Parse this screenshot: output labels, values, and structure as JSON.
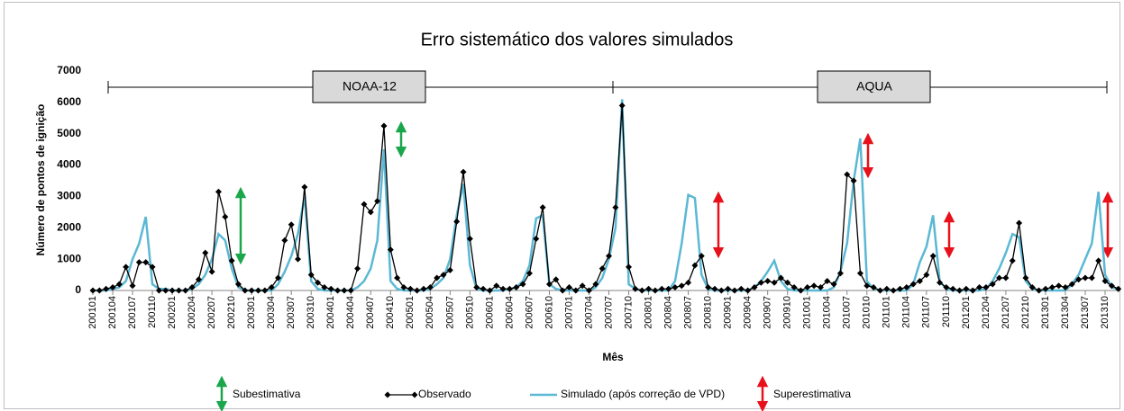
{
  "chart_data": {
    "type": "line",
    "title": "Erro sistemático dos valores simulados",
    "xlabel": "Mês",
    "ylabel": "Número de pontos de ignição",
    "annotations": [
      "NOAA-12",
      "AQUA",
      "Subestimativa",
      "Superestimativa"
    ],
    "categories": [
      "200101",
      null,
      null,
      "200104",
      null,
      null,
      "200107",
      null,
      null,
      "200110",
      null,
      null,
      "200201",
      null,
      null,
      "200204",
      null,
      null,
      "200207",
      null,
      null,
      "200210",
      null,
      null,
      "200301",
      null,
      null,
      "200304",
      null,
      null,
      "200307",
      null,
      null,
      "200310",
      null,
      null,
      "200401",
      null,
      null,
      "200404",
      null,
      null,
      "200407",
      null,
      null,
      "200410",
      null,
      null,
      "200501",
      null,
      null,
      "200504",
      null,
      null,
      "200507",
      null,
      null,
      "200510",
      null,
      null,
      "200601",
      null,
      null,
      "200604",
      null,
      null,
      "200607",
      null,
      null,
      "200610",
      null,
      null,
      "200701",
      null,
      null,
      "200704",
      null,
      null,
      "200707",
      null,
      null,
      "200710",
      null,
      null,
      "200801",
      null,
      null,
      "200804",
      null,
      null,
      "200807",
      null,
      null,
      "200810",
      null,
      null,
      "200901",
      null,
      null,
      "200904",
      null,
      null,
      "200907",
      null,
      null,
      "200910",
      null,
      null,
      "201001",
      null,
      null,
      "201004",
      null,
      null,
      "201007",
      null,
      null,
      "201010",
      null,
      null,
      "201101",
      null,
      null,
      "201104",
      null,
      null,
      "201107",
      null,
      null,
      "201110",
      null,
      null,
      "201201",
      null,
      null,
      "201204",
      null,
      null,
      "201207",
      null,
      null,
      "201210",
      null,
      null,
      "201301",
      null,
      null,
      "201304",
      null,
      null,
      "201307",
      null,
      null,
      "201310",
      null,
      null
    ],
    "series": [
      {
        "name": "Observado",
        "color": "#000000",
        "marker": "diamond",
        "values": [
          0,
          0,
          50,
          100,
          200,
          750,
          150,
          900,
          900,
          750,
          0,
          0,
          0,
          0,
          0,
          100,
          350,
          1200,
          600,
          3150,
          2350,
          950,
          200,
          0,
          0,
          0,
          0,
          100,
          400,
          1600,
          2100,
          1000,
          3300,
          500,
          250,
          100,
          50,
          0,
          0,
          0,
          700,
          2750,
          2500,
          2850,
          5250,
          1300,
          400,
          100,
          50,
          0,
          50,
          100,
          400,
          500,
          650,
          2200,
          3780,
          1650,
          100,
          50,
          0,
          150,
          50,
          50,
          100,
          200,
          550,
          1650,
          2650,
          200,
          350,
          0,
          100,
          0,
          150,
          0,
          200,
          700,
          1100,
          2650,
          5900,
          750,
          50,
          0,
          50,
          0,
          50,
          50,
          100,
          150,
          250,
          800,
          1100,
          100,
          50,
          0,
          50,
          0,
          50,
          0,
          100,
          250,
          300,
          250,
          400,
          250,
          100,
          0,
          100,
          150,
          100,
          300,
          200,
          550,
          3700,
          3500,
          550,
          150,
          100,
          0,
          50,
          0,
          50,
          100,
          200,
          300,
          500,
          1100,
          250,
          100,
          50,
          0,
          50,
          0,
          100,
          100,
          200,
          400,
          400,
          950,
          2150,
          400,
          100,
          0,
          50,
          100,
          150,
          100,
          200,
          350,
          400,
          400,
          950,
          300,
          150,
          50
        ]
      },
      {
        "name": "Simulado (após correção de VPD)",
        "color": "#5bb8d4",
        "values": [
          0,
          0,
          0,
          50,
          100,
          300,
          1000,
          1500,
          2350,
          200,
          50,
          50,
          0,
          0,
          0,
          50,
          200,
          500,
          1000,
          1800,
          1600,
          700,
          100,
          0,
          0,
          0,
          0,
          0,
          200,
          600,
          1100,
          1800,
          3000,
          300,
          50,
          0,
          0,
          0,
          0,
          0,
          100,
          300,
          700,
          1600,
          4500,
          300,
          50,
          0,
          0,
          0,
          0,
          50,
          200,
          400,
          1000,
          2400,
          3400,
          800,
          50,
          0,
          0,
          0,
          0,
          50,
          100,
          300,
          800,
          2300,
          2400,
          200,
          50,
          0,
          0,
          0,
          0,
          0,
          100,
          400,
          1000,
          2000,
          6100,
          200,
          50,
          0,
          0,
          0,
          0,
          0,
          300,
          1500,
          3050,
          2950,
          500,
          50,
          0,
          0,
          0,
          0,
          0,
          0,
          100,
          300,
          600,
          950,
          300,
          50,
          0,
          0,
          0,
          0,
          0,
          0,
          100,
          600,
          1500,
          3500,
          4850,
          300,
          50,
          0,
          0,
          0,
          0,
          0,
          200,
          900,
          1400,
          2400,
          300,
          50,
          0,
          0,
          0,
          0,
          0,
          50,
          300,
          700,
          1200,
          1800,
          1700,
          300,
          50,
          0,
          0,
          0,
          0,
          0,
          200,
          500,
          1000,
          1500,
          3150,
          500,
          100,
          50
        ]
      }
    ],
    "ylim": [
      0,
      7000
    ],
    "yticks": [
      0,
      1000,
      2000,
      3000,
      4000,
      5000,
      6000,
      7000
    ],
    "grid": false,
    "legend": "bottom"
  }
}
